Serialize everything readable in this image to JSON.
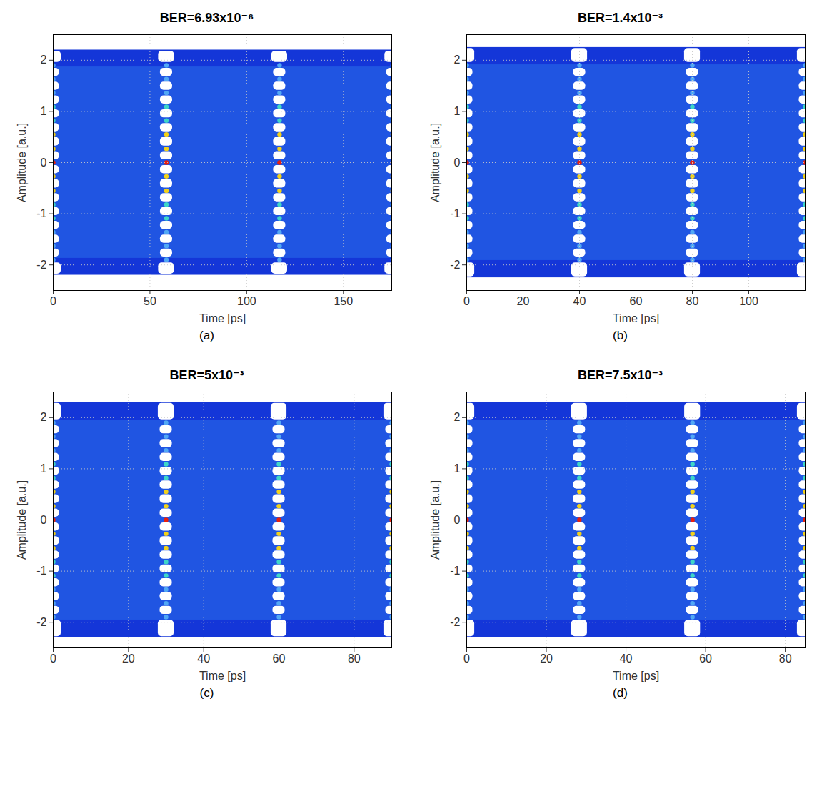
{
  "chart_data": [
    {
      "type": "eye",
      "title": "BER=6.93x10⁻⁶",
      "caption": "(a)",
      "xlabel": "Time [ps]",
      "ylabel": "Amplitude [a.u.]",
      "xlim": [
        0,
        175
      ],
      "xticks": [
        0,
        50,
        100,
        150
      ],
      "ylim": [
        -2.5,
        2.5
      ],
      "yticks": [
        -2,
        -1,
        0,
        1,
        2
      ],
      "grid": true,
      "x": [
        0,
        58.5,
        117,
        175.5
      ],
      "levels": [
        -1.9,
        -1.63,
        -1.36,
        -1.09,
        -0.82,
        -0.55,
        -0.27,
        0,
        0.27,
        0.55,
        0.82,
        1.09,
        1.36,
        1.63,
        1.9
      ],
      "envelope": [
        -2.2,
        2.2
      ]
    },
    {
      "type": "eye",
      "title": "BER=1.4x10⁻³",
      "caption": "(b)",
      "xlabel": "Time [ps]",
      "ylabel": "Amplitude [a.u.]",
      "xlim": [
        0,
        120
      ],
      "xticks": [
        0,
        20,
        40,
        60,
        80,
        100
      ],
      "ylim": [
        -2.5,
        2.5
      ],
      "yticks": [
        -2,
        -1,
        0,
        1,
        2
      ],
      "grid": true,
      "x": [
        0,
        40,
        80,
        120
      ],
      "levels": [
        -1.9,
        -1.63,
        -1.36,
        -1.09,
        -0.82,
        -0.55,
        -0.27,
        0,
        0.27,
        0.55,
        0.82,
        1.09,
        1.36,
        1.63,
        1.9
      ],
      "envelope": [
        -2.25,
        2.25
      ]
    },
    {
      "type": "eye",
      "title": "BER=5x10⁻³",
      "caption": "(c)",
      "xlabel": "Time [ps]",
      "ylabel": "Amplitude [a.u.]",
      "xlim": [
        0,
        90
      ],
      "xticks": [
        0,
        20,
        40,
        60,
        80
      ],
      "ylim": [
        -2.5,
        2.5
      ],
      "yticks": [
        -2,
        -1,
        0,
        1,
        2
      ],
      "grid": true,
      "x": [
        0,
        30,
        60,
        90
      ],
      "levels": [
        -1.9,
        -1.63,
        -1.36,
        -1.09,
        -0.82,
        -0.55,
        -0.27,
        0,
        0.27,
        0.55,
        0.82,
        1.09,
        1.36,
        1.63,
        1.9
      ],
      "envelope": [
        -2.3,
        2.3
      ]
    },
    {
      "type": "eye",
      "title": "BER=7.5x10⁻³",
      "caption": "(d)",
      "xlabel": "Time [ps]",
      "ylabel": "Amplitude [a.u.]",
      "xlim": [
        0,
        85
      ],
      "xticks": [
        0,
        20,
        40,
        60,
        80
      ],
      "ylim": [
        -2.5,
        2.5
      ],
      "yticks": [
        -2,
        -1,
        0,
        1,
        2
      ],
      "grid": true,
      "x": [
        0,
        28.3,
        56.7,
        85
      ],
      "levels": [
        -1.9,
        -1.63,
        -1.36,
        -1.09,
        -0.82,
        -0.55,
        -0.27,
        0,
        0.27,
        0.55,
        0.82,
        1.09,
        1.36,
        1.63,
        1.9
      ],
      "envelope": [
        -2.3,
        2.3
      ]
    }
  ]
}
